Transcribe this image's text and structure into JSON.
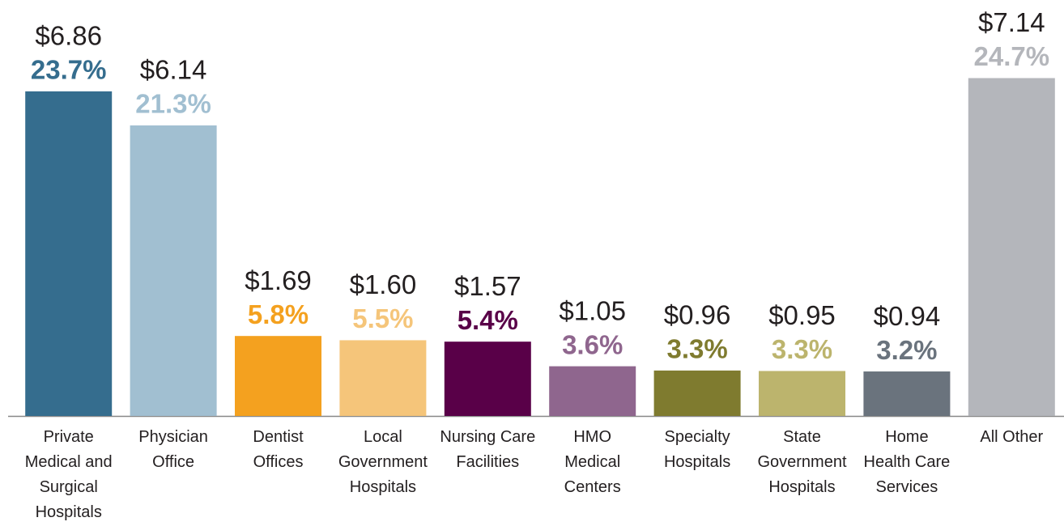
{
  "chart_data": {
    "type": "bar",
    "categories": [
      [
        "Private",
        "Medical and",
        "Surgical",
        "Hospitals"
      ],
      [
        "Physician",
        "Office"
      ],
      [
        "Dentist",
        "Offices"
      ],
      [
        "Local",
        "Government",
        "Hospitals"
      ],
      [
        "Nursing Care",
        "Facilities"
      ],
      [
        "HMO",
        "Medical",
        "Centers"
      ],
      [
        "Specialty",
        "Hospitals"
      ],
      [
        "State",
        "Government",
        "Hospitals"
      ],
      [
        "Home",
        "Health Care",
        "Services"
      ],
      [
        "All Other"
      ]
    ],
    "values": [
      6.86,
      6.14,
      1.69,
      1.6,
      1.57,
      1.05,
      0.96,
      0.95,
      0.94,
      7.14
    ],
    "value_labels": [
      "$6.86",
      "$6.14",
      "$1.69",
      "$1.60",
      "$1.57",
      "$1.05",
      "$0.96",
      "$0.95",
      "$0.94",
      "$7.14"
    ],
    "percent_labels": [
      "23.7%",
      "21.3%",
      "5.8%",
      "5.5%",
      "5.4%",
      "3.6%",
      "3.3%",
      "3.3%",
      "3.2%",
      "24.7%"
    ],
    "colors": [
      "#356d8e",
      "#a1bfd1",
      "#f4a11f",
      "#f5c57a",
      "#590048",
      "#8f668e",
      "#7f7b2f",
      "#bcb46d",
      "#6a737d",
      "#b4b6bb"
    ],
    "ylim": [
      0,
      7.2
    ]
  }
}
